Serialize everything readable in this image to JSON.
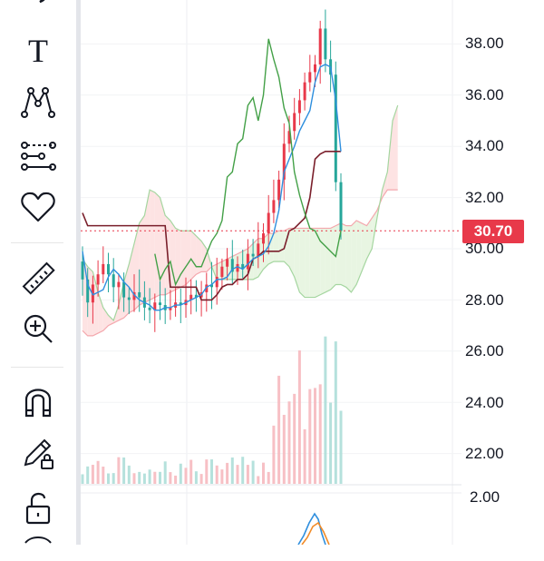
{
  "toolbar": {
    "tools": [
      {
        "name": "brush-tool",
        "icon": "brush-icon"
      },
      {
        "name": "text-tool",
        "icon": "text-icon"
      },
      {
        "name": "pattern-tool",
        "icon": "pattern-icon"
      },
      {
        "name": "prediction-tool",
        "icon": "prediction-icon"
      },
      {
        "name": "favorite-tool",
        "icon": "heart-icon"
      },
      {
        "name": "measure-tool",
        "icon": "ruler-icon"
      },
      {
        "name": "zoom-tool",
        "icon": "zoom-in-icon"
      },
      {
        "name": "magnet-tool",
        "icon": "magnet-icon"
      },
      {
        "name": "lock-drawings-tool",
        "icon": "pencil-lock-icon"
      },
      {
        "name": "unlock-tool",
        "icon": "unlock-icon"
      }
    ],
    "text_tool_glyph": "T"
  },
  "price_axis": {
    "ticks": [
      "38.00",
      "36.00",
      "34.00",
      "32.00",
      "30.00",
      "28.00",
      "26.00",
      "24.00",
      "22.00"
    ],
    "current_price": "30.70"
  },
  "oscillator_axis": {
    "ticks": [
      "2.00"
    ]
  },
  "colors": {
    "up": "#e8394a",
    "down": "#26a69a",
    "price_badge": "#e8394a",
    "conversion_line": "#2f8fde",
    "base_line": "#7a1f2b",
    "lagging_span": "#43a047",
    "cloud_bull": "#e8f5e2",
    "cloud_bear": "#fde3e3"
  },
  "chart_data": {
    "type": "line",
    "title": "",
    "xlabel": "",
    "ylabel": "",
    "ylim": [
      21.0,
      40.0
    ],
    "current_price": 30.7,
    "series": [
      {
        "key": "conversion",
        "values": [
          29.9,
          28.6,
          28.2,
          28.3,
          28.4,
          28.9,
          29.2,
          29.0,
          28.7,
          28.5,
          28.2,
          28.0,
          27.9,
          27.8,
          27.6,
          27.6,
          27.7,
          27.7,
          27.8,
          27.8,
          27.9,
          28.0,
          28.1,
          28.2,
          28.5,
          28.6,
          28.8,
          28.8,
          28.9,
          29.2,
          29.3,
          29.2,
          29.4,
          29.6,
          29.7,
          29.8,
          30.1,
          30.6,
          31.5,
          33.0,
          33.5,
          34.0,
          34.6,
          35.0,
          35.4,
          36.5,
          37.1,
          37.2,
          37.1,
          35.8,
          33.8
        ]
      },
      {
        "key": "base",
        "values": [
          31.4,
          30.9,
          30.9,
          30.9,
          30.9,
          30.9,
          30.9,
          30.9,
          30.9,
          30.9,
          30.9,
          30.9,
          30.9,
          30.9,
          30.9,
          30.9,
          30.9,
          28.5,
          28.5,
          28.5,
          28.5,
          28.5,
          28.5,
          28.0,
          28.0,
          28.0,
          28.2,
          28.5,
          28.6,
          28.6,
          28.8,
          28.8,
          29.0,
          29.6,
          29.7,
          29.9,
          29.9,
          29.9,
          29.9,
          30.0,
          30.7,
          30.8,
          31.0,
          31.2,
          32.0,
          33.5,
          33.7,
          33.8,
          33.8,
          33.8,
          33.8
        ]
      },
      {
        "key": "lagging",
        "values": [
          29.8,
          28.8,
          29.2,
          29.5,
          28.6,
          29.0,
          29.3,
          29.6,
          29.3,
          29.3,
          29.8,
          30.3,
          30.6,
          31.1,
          32.8,
          33.0,
          34.1,
          34.3,
          35.6,
          35.9,
          35.0,
          36.0,
          38.2,
          37.4,
          36.7,
          35.5,
          34.9,
          33.0,
          32.1,
          31.4,
          30.8,
          30.7,
          30.3,
          30.1,
          29.9,
          29.7,
          30.7
        ]
      },
      {
        "key": "span_a",
        "values": [
          26.8,
          26.6,
          26.6,
          26.7,
          26.8,
          27.0,
          27.1,
          27.2,
          27.3,
          27.5,
          27.6,
          27.8,
          27.9,
          28.0,
          28.1,
          28.2,
          28.2,
          28.3,
          28.4,
          28.5,
          28.6,
          28.8,
          29.0,
          29.1,
          29.1,
          29.3,
          29.4,
          29.5,
          29.6,
          29.7,
          29.8,
          29.9,
          30.0,
          30.2,
          30.4,
          30.4,
          30.6,
          30.6,
          30.7,
          30.7,
          30.8,
          30.8,
          30.8,
          30.8,
          30.8,
          30.8,
          30.8,
          30.8,
          30.8,
          30.9,
          31.0,
          30.9,
          30.9,
          31.1,
          31.0,
          30.9,
          31.2,
          31.5,
          32.0,
          32.3,
          32.3,
          32.3
        ]
      },
      {
        "key": "span_b",
        "values": [
          29.6,
          29.3,
          29.1,
          28.3,
          27.7,
          27.4,
          27.2,
          27.8,
          28.7,
          29.4,
          30.2,
          31.0,
          31.3,
          32.3,
          32.2,
          32.0,
          31.3,
          31.1,
          30.8,
          30.7,
          30.7,
          30.7,
          30.5,
          30.3,
          30.0,
          29.3,
          28.8,
          28.8,
          28.8,
          28.8,
          28.8,
          28.8,
          28.8,
          28.8,
          28.9,
          29.2,
          29.4,
          29.5,
          29.5,
          29.5,
          29.3,
          28.9,
          28.3,
          28.1,
          28.1,
          28.1,
          28.2,
          28.3,
          28.4,
          28.6,
          28.6,
          28.5,
          28.3,
          28.6,
          29.1,
          29.6,
          30.0,
          31.2,
          32.3,
          33.0,
          35.0,
          35.6
        ]
      }
    ]
  }
}
